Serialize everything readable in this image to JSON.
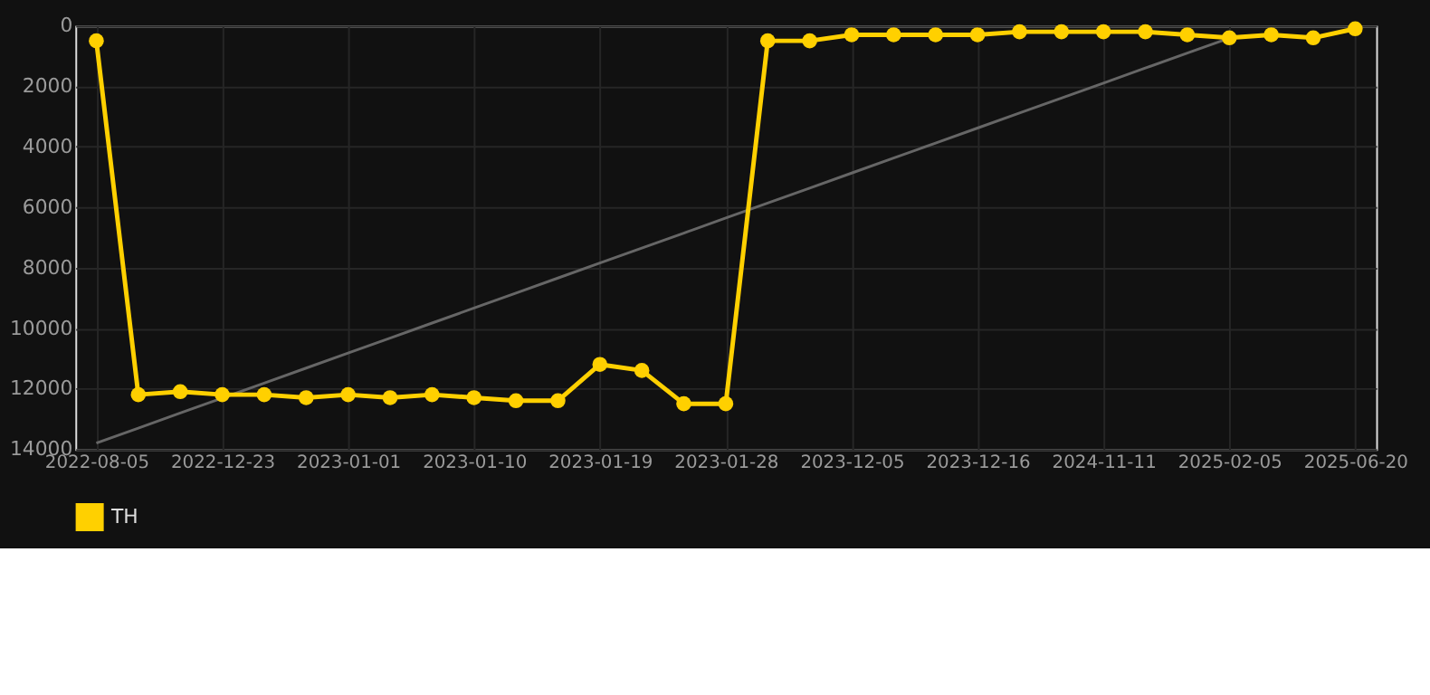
{
  "chart_data": {
    "type": "line",
    "categories": [
      "2022-08-05",
      null,
      null,
      "2022-12-23",
      null,
      null,
      "2023-01-01",
      null,
      null,
      "2023-01-10",
      null,
      null,
      "2023-01-19",
      null,
      null,
      "2023-01-28",
      null,
      null,
      "2023-12-05",
      null,
      null,
      "2023-12-16",
      null,
      null,
      "2024-11-11",
      null,
      null,
      "2025-02-05",
      null,
      null,
      "2025-06-20"
    ],
    "series": [
      {
        "name": "TH",
        "color": "#ffd000",
        "marker": "circle",
        "values": [
          500,
          12200,
          12100,
          12200,
          12200,
          12300,
          12200,
          12300,
          12200,
          12300,
          12400,
          12400,
          11200,
          11400,
          12500,
          12500,
          500,
          500,
          300,
          300,
          300,
          300,
          200,
          200,
          200,
          200,
          300,
          400,
          300,
          400,
          100
        ]
      },
      {
        "color": "#666666",
        "marker": "none",
        "values": [
          13800,
          13304,
          12808,
          12312,
          11816,
          11320,
          10824,
          10328,
          9832,
          9336,
          8840,
          8344,
          7848,
          7352,
          6856,
          6360,
          5864,
          5368,
          4872,
          4376,
          3880,
          3384,
          2888,
          2392,
          1896,
          1400,
          904,
          408,
          null,
          null,
          null
        ]
      }
    ],
    "ylim": [
      14000,
      0
    ],
    "yticks": [
      0,
      2000,
      4000,
      6000,
      8000,
      10000,
      12000,
      14000
    ],
    "grid": true,
    "legend": "bottom",
    "line_style": "solid"
  }
}
